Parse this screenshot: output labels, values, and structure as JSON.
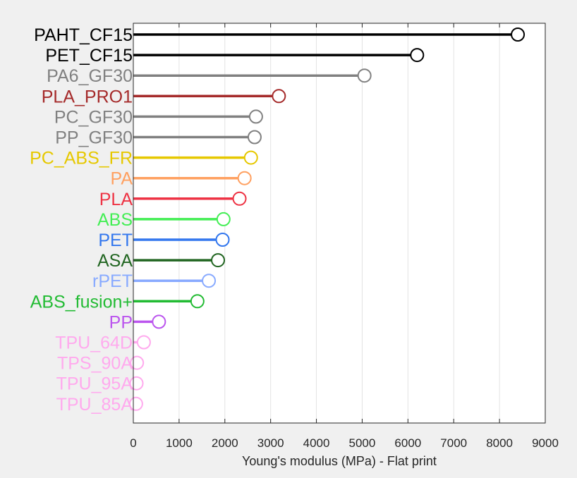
{
  "chart_data": {
    "type": "lollipop",
    "xlabel": "Young's modulus (MPa) - Flat print",
    "xlim": [
      0,
      9000
    ],
    "xticks": [
      0,
      1000,
      2000,
      3000,
      4000,
      5000,
      6000,
      7000,
      8000,
      9000
    ],
    "grid": "vertical",
    "categories": [
      {
        "label": "PAHT_CF15",
        "value": 8400,
        "color": "#000000"
      },
      {
        "label": "PET_CF15",
        "value": 6200,
        "color": "#000000"
      },
      {
        "label": "PA6_GF30",
        "value": 5050,
        "color": "#808080"
      },
      {
        "label": "PLA_PRO1",
        "value": 3180,
        "color": "#a52a2a"
      },
      {
        "label": "PC_GF30",
        "value": 2680,
        "color": "#808080"
      },
      {
        "label": "PP_GF30",
        "value": 2650,
        "color": "#808080"
      },
      {
        "label": "PC_ABS_FR",
        "value": 2570,
        "color": "#e6c800"
      },
      {
        "label": "PA",
        "value": 2430,
        "color": "#ffa060"
      },
      {
        "label": "PLA",
        "value": 2320,
        "color": "#ee3344"
      },
      {
        "label": "ABS",
        "value": 1970,
        "color": "#44ee55"
      },
      {
        "label": "PET",
        "value": 1950,
        "color": "#3377ee"
      },
      {
        "label": "ASA",
        "value": 1850,
        "color": "#226622"
      },
      {
        "label": "rPET",
        "value": 1650,
        "color": "#88aaff"
      },
      {
        "label": "ABS_fusion+",
        "value": 1400,
        "color": "#22bb33"
      },
      {
        "label": "PP",
        "value": 560,
        "color": "#bb55ee"
      },
      {
        "label": "TPU_64D",
        "value": 230,
        "color": "#ffaaee"
      },
      {
        "label": "TPS_90A",
        "value": 80,
        "color": "#ffaaee"
      },
      {
        "label": "TPU_95A",
        "value": 70,
        "color": "#ffaaee"
      },
      {
        "label": "TPU_85A",
        "value": 60,
        "color": "#ffaaee"
      }
    ]
  }
}
